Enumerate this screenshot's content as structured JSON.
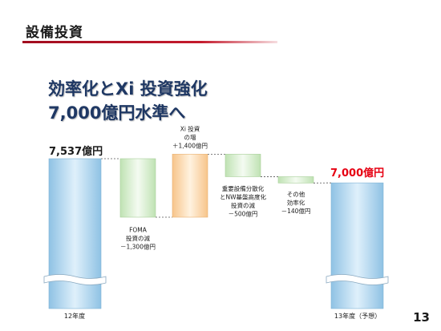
{
  "header": {
    "title": "設備投資"
  },
  "headline": {
    "line1": "効率化とXi 投資強化",
    "line2": "7,000億円水準へ"
  },
  "page_number": "13",
  "colors": {
    "accent_red": "#c41b2d",
    "headline_navy": "#1f3864",
    "total_bar": "#9bcbe8",
    "decrease_bar": "#cdeac3",
    "increase_bar": "#fbd7a8",
    "total_label_red": "#e60012"
  },
  "chart_data": {
    "type": "waterfall",
    "unit": "億円",
    "start": {
      "category": "12年度",
      "value": 7537,
      "label": "7,537億円"
    },
    "end": {
      "category": "13年度（予想）",
      "value": 7000,
      "label": "7,000億円"
    },
    "steps": [
      {
        "label_lines": [
          "FOMA",
          "投資の減",
          "－1,300億円"
        ],
        "change": -1300,
        "kind": "decrease"
      },
      {
        "label_lines": [
          "Xi 投資",
          "の増",
          "＋1,400億円"
        ],
        "change": 1400,
        "kind": "increase"
      },
      {
        "label_lines": [
          "重要設備分散化",
          "とNW基盤高度化",
          "投資の減",
          "－500億円"
        ],
        "change": -500,
        "kind": "decrease"
      },
      {
        "label_lines": [
          "その他",
          "効率化",
          "－140億円"
        ],
        "change": -140,
        "kind": "decrease"
      }
    ],
    "xlabels": [
      "12年度",
      "13年度（予想）"
    ],
    "axis_break": true,
    "ylim": [
      5000,
      9000
    ],
    "grid": false,
    "legend": "none"
  }
}
